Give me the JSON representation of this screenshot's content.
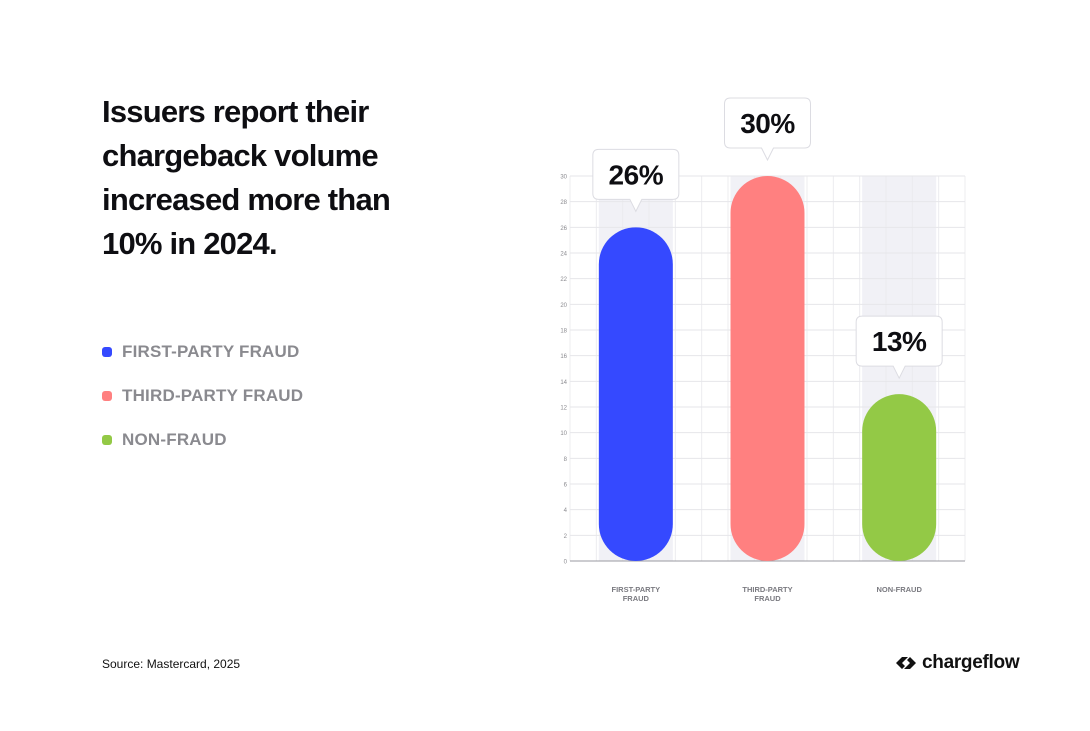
{
  "headline": "Issuers report their chargeback volume increased more than 10% in 2024.",
  "legend": [
    {
      "label": "FIRST-PARTY FRAUD",
      "color": "#3549ff"
    },
    {
      "label": "THIRD-PARTY FRAUD",
      "color": "#ff8080"
    },
    {
      "label": "NON-FRAUD",
      "color": "#93c946"
    }
  ],
  "chart_data": {
    "type": "bar",
    "categories": [
      "FIRST-PARTY FRAUD",
      "THIRD-PARTY FRAUD",
      "NON-FRAUD"
    ],
    "values": [
      26,
      30,
      13
    ],
    "value_labels": [
      "26%",
      "30%",
      "13%"
    ],
    "colors": [
      "#3549ff",
      "#ff8080",
      "#93c946"
    ],
    "ylim": [
      0,
      30
    ],
    "yticks": [
      0,
      2,
      4,
      6,
      8,
      10,
      12,
      14,
      16,
      18,
      20,
      22,
      24,
      26,
      28,
      30
    ],
    "grid": true,
    "xlabel": "",
    "ylabel": ""
  },
  "source": "Source: Mastercard, 2025",
  "brand": {
    "name": "chargeflow",
    "icon": "chargeflow-logo-icon"
  }
}
